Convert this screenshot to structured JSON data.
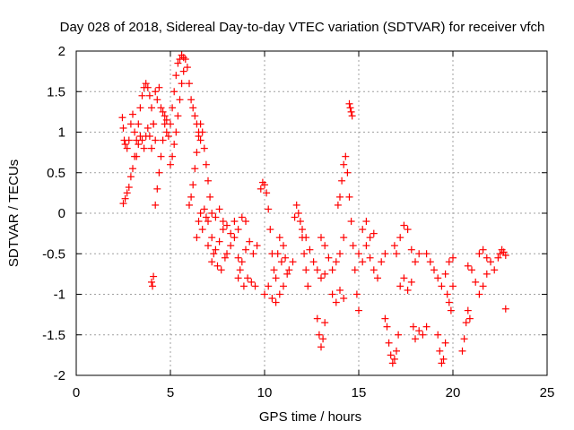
{
  "chart_data": {
    "type": "scatter",
    "title": "Day 028 of 2018, Sidereal Day-to-day VTEC variation (SDTVAR) for receiver vfch",
    "xlabel": "GPS time / hours",
    "ylabel": "SDTVAR / TECUs",
    "xlim": [
      0,
      25
    ],
    "ylim": [
      -2,
      2
    ],
    "xticks": [
      0,
      5,
      10,
      15,
      20,
      25
    ],
    "yticks": [
      -2,
      -1.5,
      -1,
      -0.5,
      0,
      0.5,
      1,
      1.5,
      2
    ],
    "grid": true,
    "marker": "+",
    "color": "#ff0000",
    "series": [
      {
        "name": "SDTVAR",
        "points": [
          [
            2.45,
            1.18
          ],
          [
            2.5,
            1.05
          ],
          [
            2.55,
            0.9
          ],
          [
            2.6,
            0.85
          ],
          [
            2.7,
            0.8
          ],
          [
            2.8,
            0.9
          ],
          [
            2.9,
            1.1
          ],
          [
            3.0,
            1.22
          ],
          [
            3.1,
            1.0
          ],
          [
            3.2,
            0.7
          ],
          [
            3.3,
            0.85
          ],
          [
            3.4,
            0.95
          ],
          [
            3.5,
            0.9
          ],
          [
            3.6,
            0.8
          ],
          [
            3.7,
            0.95
          ],
          [
            3.8,
            1.05
          ],
          [
            3.9,
            0.95
          ],
          [
            4.0,
            0.8
          ],
          [
            4.1,
            1.1
          ],
          [
            4.2,
            0.9
          ],
          [
            2.5,
            0.12
          ],
          [
            2.6,
            0.18
          ],
          [
            2.7,
            0.25
          ],
          [
            2.8,
            0.32
          ],
          [
            2.9,
            0.45
          ],
          [
            3.0,
            0.55
          ],
          [
            3.1,
            0.7
          ],
          [
            3.2,
            0.9
          ],
          [
            3.3,
            1.1
          ],
          [
            3.4,
            1.3
          ],
          [
            3.5,
            1.45
          ],
          [
            3.6,
            1.55
          ],
          [
            3.7,
            1.6
          ],
          [
            3.8,
            1.55
          ],
          [
            3.9,
            1.45
          ],
          [
            4.0,
            1.3
          ],
          [
            4.1,
            1.1
          ],
          [
            4.0,
            -0.85
          ],
          [
            4.05,
            -0.9
          ],
          [
            4.1,
            -0.78
          ],
          [
            4.2,
            0.1
          ],
          [
            4.3,
            0.3
          ],
          [
            4.4,
            0.5
          ],
          [
            4.5,
            0.7
          ],
          [
            4.6,
            0.9
          ],
          [
            4.7,
            1.1
          ],
          [
            4.8,
            1.0
          ],
          [
            4.9,
            0.95
          ],
          [
            5.0,
            1.1
          ],
          [
            5.1,
            1.3
          ],
          [
            5.2,
            1.5
          ],
          [
            5.3,
            1.7
          ],
          [
            5.4,
            1.85
          ],
          [
            5.5,
            1.9
          ],
          [
            5.6,
            1.95
          ],
          [
            5.7,
            1.92
          ],
          [
            5.8,
            1.9
          ],
          [
            5.9,
            1.8
          ],
          [
            6.0,
            1.6
          ],
          [
            6.1,
            1.4
          ],
          [
            6.2,
            1.3
          ],
          [
            6.3,
            1.2
          ],
          [
            6.4,
            1.1
          ],
          [
            6.5,
            1.0
          ],
          [
            6.6,
            0.9
          ],
          [
            4.2,
            1.5
          ],
          [
            4.3,
            1.4
          ],
          [
            4.4,
            1.55
          ],
          [
            4.5,
            1.3
          ],
          [
            4.6,
            1.25
          ],
          [
            4.7,
            1.2
          ],
          [
            4.8,
            1.15
          ],
          [
            5.0,
            0.6
          ],
          [
            5.1,
            0.7
          ],
          [
            5.2,
            0.85
          ],
          [
            5.3,
            1.0
          ],
          [
            5.4,
            1.2
          ],
          [
            5.5,
            1.4
          ],
          [
            5.6,
            1.6
          ],
          [
            5.7,
            1.75
          ],
          [
            6.0,
            0.1
          ],
          [
            6.1,
            0.2
          ],
          [
            6.2,
            0.35
          ],
          [
            6.3,
            0.55
          ],
          [
            6.4,
            0.75
          ],
          [
            6.5,
            0.95
          ],
          [
            6.6,
            1.1
          ],
          [
            6.7,
            1.0
          ],
          [
            6.8,
            0.8
          ],
          [
            6.9,
            0.6
          ],
          [
            7.0,
            0.4
          ],
          [
            7.1,
            0.2
          ],
          [
            6.4,
            -0.3
          ],
          [
            6.5,
            -0.1
          ],
          [
            6.6,
            0.0
          ],
          [
            6.7,
            -0.2
          ],
          [
            6.8,
            0.05
          ],
          [
            6.9,
            -0.05
          ],
          [
            7.0,
            -0.4
          ],
          [
            7.2,
            -0.3
          ],
          [
            7.4,
            -0.45
          ],
          [
            7.6,
            -0.35
          ],
          [
            7.8,
            -0.2
          ],
          [
            8.0,
            -0.5
          ],
          [
            8.2,
            -0.4
          ],
          [
            8.4,
            -0.3
          ],
          [
            8.6,
            -0.55
          ],
          [
            8.8,
            -0.6
          ],
          [
            9.0,
            -0.45
          ],
          [
            9.2,
            -0.35
          ],
          [
            9.4,
            -0.5
          ],
          [
            9.6,
            -0.4
          ],
          [
            7.0,
            -0.1
          ],
          [
            7.2,
            0.0
          ],
          [
            7.4,
            -0.05
          ],
          [
            7.6,
            0.05
          ],
          [
            7.8,
            -0.1
          ],
          [
            8.0,
            -0.15
          ],
          [
            8.2,
            -0.25
          ],
          [
            8.4,
            -0.1
          ],
          [
            8.6,
            -0.2
          ],
          [
            8.8,
            -0.05
          ],
          [
            9.0,
            -0.1
          ],
          [
            7.2,
            -0.6
          ],
          [
            7.3,
            -0.5
          ],
          [
            7.5,
            -0.65
          ],
          [
            7.7,
            -0.7
          ],
          [
            7.9,
            -0.55
          ],
          [
            8.6,
            -0.8
          ],
          [
            8.7,
            -0.7
          ],
          [
            8.9,
            -0.9
          ],
          [
            9.1,
            -0.8
          ],
          [
            9.3,
            -0.85
          ],
          [
            9.5,
            -0.9
          ],
          [
            9.8,
            0.3
          ],
          [
            9.9,
            0.38
          ],
          [
            10.0,
            0.35
          ],
          [
            10.1,
            0.25
          ],
          [
            10.2,
            0.05
          ],
          [
            10.3,
            -0.2
          ],
          [
            10.4,
            -0.5
          ],
          [
            10.5,
            -0.7
          ],
          [
            10.6,
            -0.8
          ],
          [
            10.0,
            -1.0
          ],
          [
            10.2,
            -0.9
          ],
          [
            10.4,
            -1.05
          ],
          [
            10.6,
            -1.1
          ],
          [
            10.8,
            -1.0
          ],
          [
            11.0,
            -0.9
          ],
          [
            11.2,
            -0.75
          ],
          [
            10.7,
            -0.5
          ],
          [
            10.8,
            -0.3
          ],
          [
            10.9,
            -0.6
          ],
          [
            11.0,
            -0.4
          ],
          [
            11.1,
            -0.55
          ],
          [
            11.3,
            -0.7
          ],
          [
            11.5,
            -0.6
          ],
          [
            11.6,
            -0.05
          ],
          [
            11.7,
            0.1
          ],
          [
            11.8,
            0.0
          ],
          [
            11.9,
            -0.1
          ],
          [
            12.0,
            -0.3
          ],
          [
            12.1,
            -0.5
          ],
          [
            12.2,
            -0.7
          ],
          [
            12.3,
            -0.9
          ],
          [
            12.0,
            -0.2
          ],
          [
            12.2,
            -0.3
          ],
          [
            12.4,
            -0.45
          ],
          [
            12.6,
            -0.6
          ],
          [
            12.8,
            -0.7
          ],
          [
            13.0,
            -0.8
          ],
          [
            13.2,
            -0.75
          ],
          [
            12.8,
            -1.3
          ],
          [
            12.9,
            -1.5
          ],
          [
            13.0,
            -1.65
          ],
          [
            13.1,
            -1.55
          ],
          [
            13.2,
            -1.35
          ],
          [
            13.0,
            -0.3
          ],
          [
            13.2,
            -0.4
          ],
          [
            13.4,
            -0.55
          ],
          [
            13.6,
            -0.7
          ],
          [
            13.8,
            -0.6
          ],
          [
            14.0,
            -0.5
          ],
          [
            14.2,
            -0.3
          ],
          [
            13.6,
            -1.0
          ],
          [
            13.8,
            -1.1
          ],
          [
            14.0,
            -0.95
          ],
          [
            14.2,
            -1.05
          ],
          [
            13.9,
            0.1
          ],
          [
            14.0,
            0.2
          ],
          [
            14.1,
            0.4
          ],
          [
            14.2,
            0.6
          ],
          [
            14.3,
            0.7
          ],
          [
            14.4,
            0.5
          ],
          [
            14.5,
            0.2
          ],
          [
            14.6,
            -0.1
          ],
          [
            14.7,
            -0.4
          ],
          [
            14.8,
            -0.7
          ],
          [
            14.9,
            -1.0
          ],
          [
            15.0,
            -1.2
          ],
          [
            14.5,
            1.35
          ],
          [
            14.55,
            1.3
          ],
          [
            14.6,
            1.25
          ],
          [
            14.65,
            1.2
          ],
          [
            15.0,
            -0.5
          ],
          [
            15.2,
            -0.6
          ],
          [
            15.4,
            -0.4
          ],
          [
            15.6,
            -0.55
          ],
          [
            15.8,
            -0.7
          ],
          [
            16.0,
            -0.8
          ],
          [
            16.2,
            -0.6
          ],
          [
            16.4,
            -0.5
          ],
          [
            15.2,
            -0.2
          ],
          [
            15.4,
            -0.1
          ],
          [
            15.6,
            -0.3
          ],
          [
            15.8,
            -0.25
          ],
          [
            16.4,
            -1.3
          ],
          [
            16.5,
            -1.4
          ],
          [
            16.6,
            -1.6
          ],
          [
            16.7,
            -1.75
          ],
          [
            16.8,
            -1.85
          ],
          [
            16.9,
            -1.8
          ],
          [
            17.0,
            -1.7
          ],
          [
            17.1,
            -1.5
          ],
          [
            16.9,
            -0.4
          ],
          [
            17.0,
            -0.5
          ],
          [
            17.2,
            -0.3
          ],
          [
            17.4,
            -0.15
          ],
          [
            17.6,
            -0.2
          ],
          [
            17.8,
            -0.45
          ],
          [
            18.0,
            -0.6
          ],
          [
            18.2,
            -0.5
          ],
          [
            17.2,
            -0.9
          ],
          [
            17.4,
            -0.8
          ],
          [
            17.6,
            -0.95
          ],
          [
            17.8,
            -0.85
          ],
          [
            17.9,
            -1.4
          ],
          [
            18.0,
            -1.55
          ],
          [
            18.2,
            -1.45
          ],
          [
            18.4,
            -1.5
          ],
          [
            18.6,
            -1.4
          ],
          [
            18.6,
            -0.5
          ],
          [
            18.8,
            -0.6
          ],
          [
            19.0,
            -0.7
          ],
          [
            19.2,
            -0.8
          ],
          [
            19.4,
            -0.9
          ],
          [
            19.6,
            -0.75
          ],
          [
            19.8,
            -0.6
          ],
          [
            20.0,
            -0.55
          ],
          [
            19.2,
            -1.5
          ],
          [
            19.3,
            -1.7
          ],
          [
            19.4,
            -1.85
          ],
          [
            19.5,
            -1.8
          ],
          [
            19.6,
            -1.6
          ],
          [
            19.7,
            -1.0
          ],
          [
            19.8,
            -1.1
          ],
          [
            19.9,
            -1.2
          ],
          [
            20.0,
            -0.9
          ],
          [
            20.5,
            -1.7
          ],
          [
            20.6,
            -1.55
          ],
          [
            20.7,
            -1.35
          ],
          [
            20.8,
            -1.2
          ],
          [
            20.9,
            -1.3
          ],
          [
            20.8,
            -0.65
          ],
          [
            21.0,
            -0.7
          ],
          [
            21.2,
            -0.85
          ],
          [
            21.4,
            -1.0
          ],
          [
            21.6,
            -0.9
          ],
          [
            21.8,
            -0.75
          ],
          [
            22.0,
            -0.6
          ],
          [
            22.2,
            -0.7
          ],
          [
            22.4,
            -0.55
          ],
          [
            21.4,
            -0.5
          ],
          [
            21.6,
            -0.45
          ],
          [
            21.8,
            -0.55
          ],
          [
            22.5,
            -0.5
          ],
          [
            22.6,
            -0.45
          ],
          [
            22.7,
            -0.48
          ],
          [
            22.8,
            -0.52
          ],
          [
            22.8,
            -1.18
          ]
        ]
      }
    ]
  }
}
